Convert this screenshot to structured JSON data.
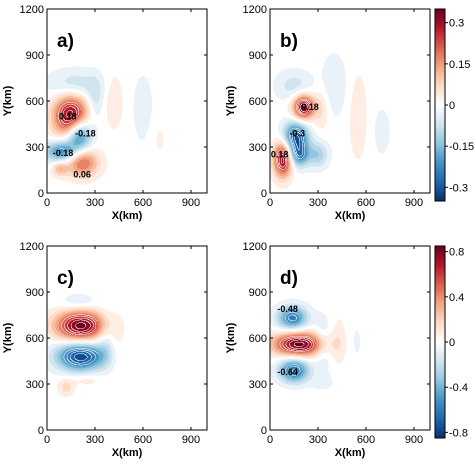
{
  "chart_data": {
    "type": "heatmap",
    "xlabel": "X(km)",
    "ylabel": "Y(km)",
    "xlim": [
      0,
      1000
    ],
    "ylim": [
      0,
      1200
    ],
    "x_ticks": [
      0,
      300,
      600,
      900
    ],
    "y_ticks": [
      0,
      300,
      600,
      900,
      1200
    ],
    "colorscale": [
      "#08306b",
      "#2166ac",
      "#4393c3",
      "#92c5de",
      "#d1e5f0",
      "#ffffff",
      "#fddbc7",
      "#f4a582",
      "#d6604d",
      "#b2182b",
      "#67001f"
    ],
    "panels": [
      {
        "id": "a",
        "letter": "a)",
        "colorbar": null,
        "features": [
          {
            "x": 150,
            "y": 500,
            "amp": 0.3,
            "sx": 75,
            "sy": 100
          },
          {
            "x": 200,
            "y": 380,
            "amp": -0.25,
            "sx": 55,
            "sy": 75
          },
          {
            "x": 90,
            "y": 270,
            "amp": -0.2,
            "sx": 70,
            "sy": 50
          },
          {
            "x": 220,
            "y": 200,
            "amp": 0.18,
            "sx": 70,
            "sy": 65
          },
          {
            "x": 80,
            "y": 160,
            "amp": 0.1,
            "sx": 35,
            "sy": 35
          },
          {
            "x": 170,
            "y": 700,
            "amp": -0.08,
            "sx": 110,
            "sy": 70
          },
          {
            "x": 300,
            "y": 600,
            "amp": -0.06,
            "sx": 35,
            "sy": 100
          },
          {
            "x": 420,
            "y": 600,
            "amp": 0.04,
            "sx": 40,
            "sy": 130
          },
          {
            "x": 600,
            "y": 550,
            "amp": -0.03,
            "sx": 50,
            "sy": 180
          },
          {
            "x": 700,
            "y": 350,
            "amp": 0.02,
            "sx": 40,
            "sy": 100
          }
        ],
        "annotations": [
          {
            "text": "0.18",
            "x": 130,
            "y": 480
          },
          {
            "text": "-0.18",
            "x": 240,
            "y": 370
          },
          {
            "text": "-0.18",
            "x": 100,
            "y": 240
          },
          {
            "text": "0.06",
            "x": 220,
            "y": 100
          }
        ]
      },
      {
        "id": "b",
        "letter": "b)",
        "colorbar": {
          "min": -0.35,
          "max": 0.35,
          "ticks": [
            -0.3,
            -0.15,
            0,
            0.15,
            0.3
          ]
        },
        "features": [
          {
            "x": 210,
            "y": 560,
            "amp": 0.3,
            "sx": 45,
            "sy": 55
          },
          {
            "x": 160,
            "y": 370,
            "amp": -0.25,
            "sx": 55,
            "sy": 65
          },
          {
            "x": 80,
            "y": 220,
            "amp": 0.28,
            "sx": 40,
            "sy": 80
          },
          {
            "x": 180,
            "y": 250,
            "amp": -0.2,
            "sx": 45,
            "sy": 55
          },
          {
            "x": 300,
            "y": 250,
            "amp": -0.1,
            "sx": 45,
            "sy": 60
          },
          {
            "x": 150,
            "y": 700,
            "amp": -0.06,
            "sx": 80,
            "sy": 70
          },
          {
            "x": 320,
            "y": 550,
            "amp": 0.05,
            "sx": 35,
            "sy": 100
          },
          {
            "x": 400,
            "y": 700,
            "amp": -0.04,
            "sx": 60,
            "sy": 150
          },
          {
            "x": 550,
            "y": 500,
            "amp": 0.04,
            "sx": 40,
            "sy": 200
          },
          {
            "x": 700,
            "y": 400,
            "amp": -0.03,
            "sx": 40,
            "sy": 120
          }
        ],
        "annotations": [
          {
            "text": "0.18",
            "x": 250,
            "y": 540
          },
          {
            "text": "-0.3",
            "x": 170,
            "y": 370
          },
          {
            "text": "0.18",
            "x": 60,
            "y": 230
          }
        ]
      },
      {
        "id": "c",
        "letter": "c)",
        "colorbar": null,
        "features": [
          {
            "x": 210,
            "y": 680,
            "amp": 0.7,
            "sx": 110,
            "sy": 70
          },
          {
            "x": 210,
            "y": 480,
            "amp": -0.65,
            "sx": 105,
            "sy": 65
          },
          {
            "x": 200,
            "y": 830,
            "amp": -0.12,
            "sx": 80,
            "sy": 40
          },
          {
            "x": 370,
            "y": 600,
            "amp": -0.12,
            "sx": 40,
            "sy": 120
          },
          {
            "x": 430,
            "y": 520,
            "amp": 0.06,
            "sx": 35,
            "sy": 100
          },
          {
            "x": 120,
            "y": 280,
            "amp": 0.14,
            "sx": 35,
            "sy": 40
          },
          {
            "x": 250,
            "y": 330,
            "amp": 0.08,
            "sx": 70,
            "sy": 30
          }
        ],
        "annotations": []
      },
      {
        "id": "d",
        "letter": "d)",
        "colorbar": {
          "min": -0.85,
          "max": 0.85,
          "ticks": [
            -0.8,
            -0.4,
            0,
            0.4,
            0.8
          ]
        },
        "features": [
          {
            "x": 180,
            "y": 560,
            "amp": 0.78,
            "sx": 110,
            "sy": 55
          },
          {
            "x": 140,
            "y": 730,
            "amp": -0.55,
            "sx": 65,
            "sy": 55
          },
          {
            "x": 150,
            "y": 390,
            "amp": -0.6,
            "sx": 65,
            "sy": 55
          },
          {
            "x": 330,
            "y": 560,
            "amp": -0.14,
            "sx": 40,
            "sy": 120
          },
          {
            "x": 430,
            "y": 580,
            "amp": 0.08,
            "sx": 35,
            "sy": 120
          },
          {
            "x": 540,
            "y": 570,
            "amp": -0.05,
            "sx": 35,
            "sy": 120
          },
          {
            "x": 330,
            "y": 310,
            "amp": -0.06,
            "sx": 60,
            "sy": 40
          },
          {
            "x": 600,
            "y": 400,
            "amp": 0.03,
            "sx": 40,
            "sy": 60
          }
        ],
        "annotations": [
          {
            "text": "-0.48",
            "x": 110,
            "y": 770
          },
          {
            "text": "-0.64",
            "x": 110,
            "y": 360
          }
        ]
      }
    ]
  }
}
